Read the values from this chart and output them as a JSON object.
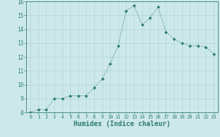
{
  "x": [
    0,
    1,
    2,
    3,
    4,
    5,
    6,
    7,
    8,
    9,
    10,
    11,
    12,
    13,
    14,
    15,
    16,
    17,
    18,
    19,
    20,
    21,
    22,
    23
  ],
  "y": [
    8.0,
    8.2,
    8.2,
    9.0,
    9.0,
    9.2,
    9.2,
    9.2,
    9.8,
    10.4,
    11.5,
    12.8,
    15.3,
    15.7,
    14.3,
    14.8,
    15.6,
    13.8,
    13.3,
    13.0,
    12.8,
    12.8,
    12.7,
    12.2
  ],
  "xlabel": "Humidex (Indice chaleur)",
  "xlim": [
    -0.5,
    23.5
  ],
  "ylim": [
    8,
    16
  ],
  "yticks": [
    8,
    9,
    10,
    11,
    12,
    13,
    14,
    15,
    16
  ],
  "xticks": [
    0,
    1,
    2,
    3,
    4,
    5,
    6,
    7,
    8,
    9,
    10,
    11,
    12,
    13,
    14,
    15,
    16,
    17,
    18,
    19,
    20,
    21,
    22,
    23
  ],
  "line_color": "#2d7d6e",
  "marker_color": "#2d7d6e",
  "bg_color": "#cde8eb",
  "grid_color": "#b0d8dc",
  "spine_color": "#2d7d6e",
  "tick_color": "#2d7d6e",
  "label_color": "#2d7d6e"
}
